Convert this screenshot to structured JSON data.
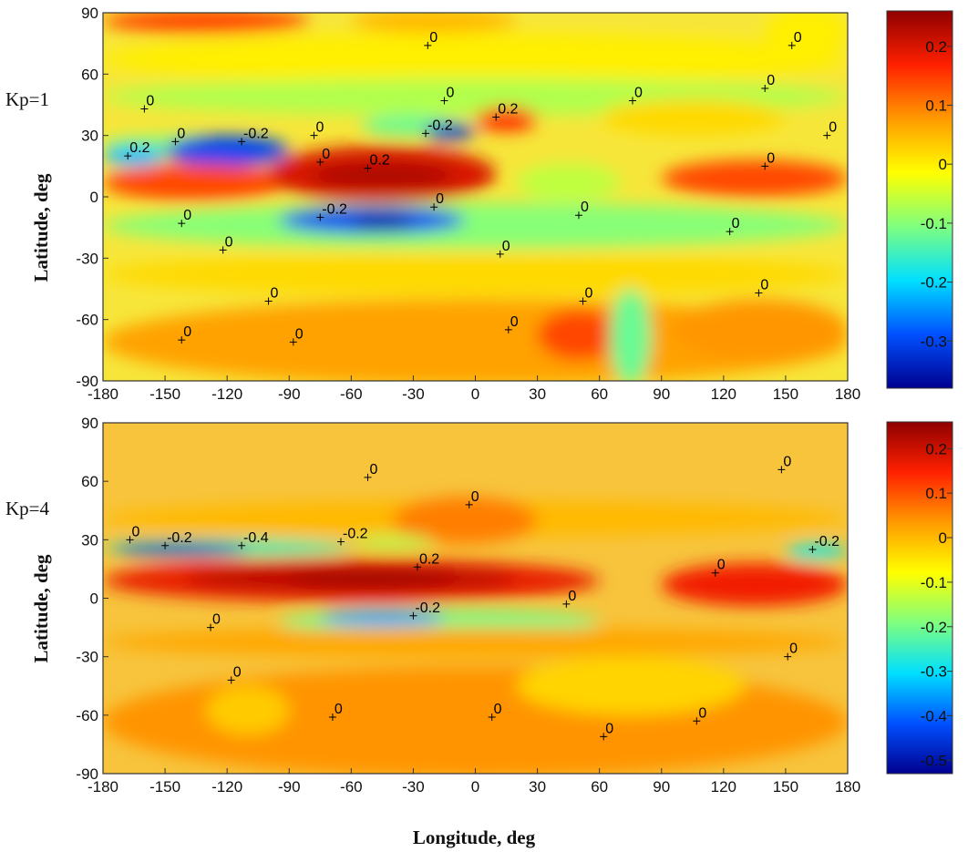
{
  "figure": {
    "xlabel": "Longitude, deg",
    "ylabel": "Latitude, deg"
  },
  "chart_data": [
    {
      "type": "heatmap",
      "panel_label": "Kp=1",
      "xlabel": "",
      "ylabel": "Latitude, deg",
      "xlim": [
        -180,
        180
      ],
      "ylim": [
        -90,
        90
      ],
      "x_ticks": [
        "-180",
        "-150",
        "-120",
        "-90",
        "-60",
        "-30",
        "0",
        "30",
        "60",
        "90",
        "120",
        "150",
        "180"
      ],
      "y_ticks": [
        "90",
        "60",
        "30",
        "0",
        "-30",
        "-60",
        "-90"
      ],
      "colorbar": {
        "range": [
          -0.38,
          0.26
        ],
        "ticks": [
          "0.2",
          "0.1",
          "0",
          "-0.1",
          "-0.2",
          "-0.3"
        ],
        "colormap": [
          "#00008f",
          "#0050ff",
          "#00dfff",
          "#7fff7f",
          "#ffff00",
          "#ff9a00",
          "#ff2000",
          "#8f0000"
        ]
      },
      "background": "#f7e63a",
      "features": [
        {
          "lon": [
            -180,
            -80
          ],
          "lat": [
            80,
            92
          ],
          "value": 0.14
        },
        {
          "lon": [
            -60,
            20
          ],
          "lat": [
            80,
            92
          ],
          "value": 0.05
        },
        {
          "lon": [
            -180,
            180
          ],
          "lat": [
            55,
            80
          ],
          "value": 0.0
        },
        {
          "lon": [
            140,
            180
          ],
          "lat": [
            70,
            92
          ],
          "value": 0.0
        },
        {
          "lon": [
            -180,
            180
          ],
          "lat": [
            40,
            58
          ],
          "value": -0.07
        },
        {
          "lon": [
            60,
            150
          ],
          "lat": [
            30,
            48
          ],
          "value": 0.02
        },
        {
          "lon": [
            -180,
            -100
          ],
          "lat": [
            22,
            30
          ],
          "value": -0.1
        },
        {
          "lon": [
            -180,
            -150
          ],
          "lat": [
            15,
            25
          ],
          "value": -0.22
        },
        {
          "lon": [
            -150,
            -90
          ],
          "lat": [
            15,
            30
          ],
          "value": -0.3
        },
        {
          "lon": [
            -55,
            -10
          ],
          "lat": [
            30,
            40
          ],
          "value": -0.12
        },
        {
          "lon": [
            -25,
            0
          ],
          "lat": [
            28,
            36
          ],
          "value": -0.32
        },
        {
          "lon": [
            0,
            30
          ],
          "lat": [
            32,
            44
          ],
          "value": 0.16
        },
        {
          "lon": [
            -180,
            -90
          ],
          "lat": [
            -2,
            16
          ],
          "value": 0.14
        },
        {
          "lon": [
            -100,
            10
          ],
          "lat": [
            -3,
            25
          ],
          "value": 0.2
        },
        {
          "lon": [
            -80,
            -10
          ],
          "lat": [
            5,
            16
          ],
          "value": 0.24
        },
        {
          "lon": [
            20,
            70
          ],
          "lat": [
            -2,
            16
          ],
          "value": -0.06
        },
        {
          "lon": [
            90,
            180
          ],
          "lat": [
            0,
            18
          ],
          "value": 0.14
        },
        {
          "lon": [
            -180,
            180
          ],
          "lat": [
            -25,
            -3
          ],
          "value": -0.1
        },
        {
          "lon": [
            -95,
            -5
          ],
          "lat": [
            -18,
            -5
          ],
          "value": -0.3
        },
        {
          "lon": [
            -60,
            -30
          ],
          "lat": [
            -16,
            -8
          ],
          "value": -0.36
        },
        {
          "lon": [
            -180,
            180
          ],
          "lat": [
            -48,
            -28
          ],
          "value": 0.02
        },
        {
          "lon": [
            -180,
            180
          ],
          "lat": [
            -92,
            -50
          ],
          "value": 0.07
        },
        {
          "lon": [
            30,
            70
          ],
          "lat": [
            -80,
            -55
          ],
          "value": 0.14
        },
        {
          "lon": [
            65,
            85
          ],
          "lat": [
            -92,
            -45
          ],
          "value": -0.12
        },
        {
          "lon": [
            95,
            180
          ],
          "lat": [
            -80,
            -50
          ],
          "value": 0.08
        }
      ],
      "contours": [
        {
          "value": 0,
          "label": "0",
          "lon": -23,
          "lat": 74
        },
        {
          "value": 0,
          "label": "0",
          "lon": 153,
          "lat": 74
        },
        {
          "value": 0,
          "label": "0",
          "lon": 140,
          "lat": 53
        },
        {
          "value": 0,
          "label": "0",
          "lon": 76,
          "lat": 47
        },
        {
          "value": 0,
          "label": "0",
          "lon": -15,
          "lat": 47
        },
        {
          "value": 0.2,
          "label": "0.2",
          "lon": 10,
          "lat": 39
        },
        {
          "value": 0,
          "label": "0",
          "lon": -160,
          "lat": 43
        },
        {
          "value": 0,
          "label": "0",
          "lon": -145,
          "lat": 27
        },
        {
          "value": 0,
          "label": "0",
          "lon": -78,
          "lat": 30
        },
        {
          "value": -0.2,
          "label": "-0.2",
          "lon": -113,
          "lat": 27
        },
        {
          "value": -0.2,
          "label": "-0.2",
          "lon": -24,
          "lat": 31
        },
        {
          "value": 0,
          "label": "0",
          "lon": 170,
          "lat": 30
        },
        {
          "value": 0.2,
          "label": "0.2",
          "lon": -168,
          "lat": 20
        },
        {
          "value": 0,
          "label": "0",
          "lon": -75,
          "lat": 17
        },
        {
          "value": 0.2,
          "label": "0.2",
          "lon": -52,
          "lat": 14
        },
        {
          "value": 0,
          "label": "0",
          "lon": 140,
          "lat": 15
        },
        {
          "value": 0,
          "label": "0",
          "lon": -20,
          "lat": -5
        },
        {
          "value": -0.2,
          "label": "-0.2",
          "lon": -75,
          "lat": -10
        },
        {
          "value": 0,
          "label": "0",
          "lon": -142,
          "lat": -13
        },
        {
          "value": 0,
          "label": "0",
          "lon": 50,
          "lat": -9
        },
        {
          "value": 0,
          "label": "0",
          "lon": 123,
          "lat": -17
        },
        {
          "value": 0,
          "label": "0",
          "lon": -122,
          "lat": -26
        },
        {
          "value": 0,
          "label": "0",
          "lon": 12,
          "lat": -28
        },
        {
          "value": 0,
          "label": "0",
          "lon": -100,
          "lat": -51
        },
        {
          "value": 0,
          "label": "0",
          "lon": 52,
          "lat": -51
        },
        {
          "value": 0,
          "label": "0",
          "lon": 137,
          "lat": -47
        },
        {
          "value": 0,
          "label": "0",
          "lon": -142,
          "lat": -70
        },
        {
          "value": 0,
          "label": "0",
          "lon": -88,
          "lat": -71
        },
        {
          "value": 0,
          "label": "0",
          "lon": 16,
          "lat": -65
        }
      ]
    },
    {
      "type": "heatmap",
      "panel_label": "Kp=4",
      "xlabel": "Longitude, deg",
      "ylabel": "Latitude, deg",
      "xlim": [
        -180,
        180
      ],
      "ylim": [
        -90,
        90
      ],
      "x_ticks": [
        "-180",
        "-150",
        "-120",
        "-90",
        "-60",
        "-30",
        "0",
        "30",
        "60",
        "90",
        "120",
        "150",
        "180"
      ],
      "y_ticks": [
        "90",
        "60",
        "30",
        "0",
        "-30",
        "-60",
        "-90"
      ],
      "colorbar": {
        "range": [
          -0.53,
          0.26
        ],
        "ticks": [
          "0.2",
          "0.1",
          "0",
          "-0.1",
          "-0.2",
          "-0.3",
          "-0.4",
          "-0.5"
        ],
        "colormap": [
          "#00008f",
          "#0050ff",
          "#00dfff",
          "#7fff7f",
          "#ffff00",
          "#ff9a00",
          "#ff2000",
          "#8f0000"
        ]
      },
      "background": "#f7c43c",
      "features": [
        {
          "lon": [
            -180,
            180
          ],
          "lat": [
            32,
            50
          ],
          "value": 0.0
        },
        {
          "lon": [
            -40,
            30
          ],
          "lat": [
            28,
            52
          ],
          "value": 0.06
        },
        {
          "lon": [
            -180,
            -60
          ],
          "lat": [
            22,
            30
          ],
          "value": -0.25
        },
        {
          "lon": [
            -175,
            -110
          ],
          "lat": [
            22,
            28
          ],
          "value": -0.45
        },
        {
          "lon": [
            -60,
            -20
          ],
          "lat": [
            26,
            32
          ],
          "value": -0.15
        },
        {
          "lon": [
            150,
            180
          ],
          "lat": [
            20,
            28
          ],
          "value": -0.28
        },
        {
          "lon": [
            -180,
            60
          ],
          "lat": [
            -2,
            20
          ],
          "value": 0.17
        },
        {
          "lon": [
            -140,
            20
          ],
          "lat": [
            4,
            16
          ],
          "value": 0.22
        },
        {
          "lon": [
            -90,
            -10
          ],
          "lat": [
            6,
            14
          ],
          "value": 0.25
        },
        {
          "lon": [
            90,
            180
          ],
          "lat": [
            -4,
            18
          ],
          "value": 0.16
        },
        {
          "lon": [
            -95,
            60
          ],
          "lat": [
            -18,
            -6
          ],
          "value": -0.2
        },
        {
          "lon": [
            -75,
            -15
          ],
          "lat": [
            -14,
            -6
          ],
          "value": -0.35
        },
        {
          "lon": [
            -180,
            180
          ],
          "lat": [
            -30,
            -15
          ],
          "value": 0.02
        },
        {
          "lon": [
            -180,
            180
          ],
          "lat": [
            -92,
            -35
          ],
          "value": 0.04
        },
        {
          "lon": [
            20,
            130
          ],
          "lat": [
            -60,
            -30
          ],
          "value": -0.03
        },
        {
          "lon": [
            -130,
            -90
          ],
          "lat": [
            -70,
            -45
          ],
          "value": -0.02
        }
      ],
      "contours": [
        {
          "value": 0,
          "label": "0",
          "lon": 148,
          "lat": 66
        },
        {
          "value": 0,
          "label": "0",
          "lon": -52,
          "lat": 62
        },
        {
          "value": 0,
          "label": "0",
          "lon": -3,
          "lat": 48
        },
        {
          "value": 0,
          "label": "0",
          "lon": -167,
          "lat": 30
        },
        {
          "value": -0.2,
          "label": "-0.2",
          "lon": -150,
          "lat": 27
        },
        {
          "value": -0.4,
          "label": "-0.4",
          "lon": -113,
          "lat": 27
        },
        {
          "value": -0.2,
          "label": "-0.2",
          "lon": -65,
          "lat": 29
        },
        {
          "value": -0.2,
          "label": "-0.2",
          "lon": 163,
          "lat": 25
        },
        {
          "value": 0.2,
          "label": "0.2",
          "lon": -28,
          "lat": 16
        },
        {
          "value": 0,
          "label": "0",
          "lon": 116,
          "lat": 13
        },
        {
          "value": 0,
          "label": "0",
          "lon": 44,
          "lat": -3
        },
        {
          "value": -0.2,
          "label": "-0.2",
          "lon": -30,
          "lat": -9
        },
        {
          "value": 0,
          "label": "0",
          "lon": -128,
          "lat": -15
        },
        {
          "value": 0,
          "label": "0",
          "lon": 151,
          "lat": -30
        },
        {
          "value": 0,
          "label": "0",
          "lon": -118,
          "lat": -42
        },
        {
          "value": 0,
          "label": "0",
          "lon": -69,
          "lat": -61
        },
        {
          "value": 0,
          "label": "0",
          "lon": 8,
          "lat": -61
        },
        {
          "value": 0,
          "label": "0",
          "lon": 107,
          "lat": -63
        },
        {
          "value": 0,
          "label": "0",
          "lon": 62,
          "lat": -71
        }
      ]
    }
  ]
}
